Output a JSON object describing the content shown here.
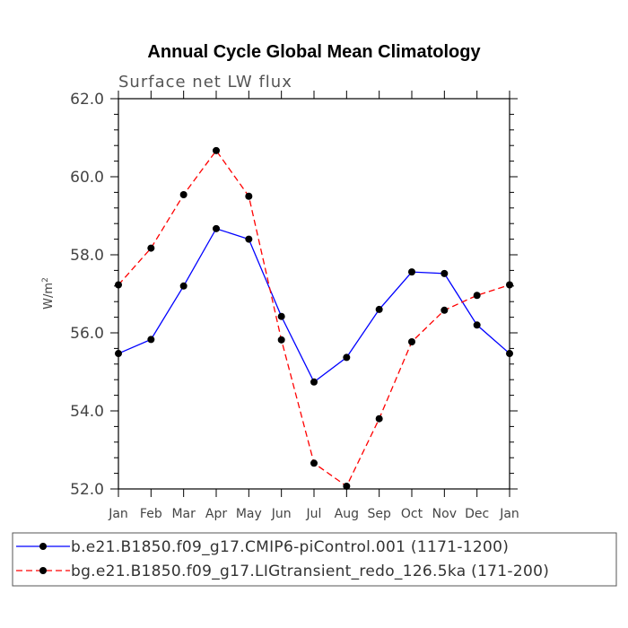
{
  "chart_data": {
    "type": "line",
    "title": "Annual Cycle Global Mean Climatology",
    "subtitle": "Surface net LW flux",
    "xlabel": "",
    "ylabel": "W/m",
    "ylabel_superscript": "2",
    "ylim": [
      52.0,
      62.0
    ],
    "yticks": [
      "52.0",
      "54.0",
      "56.0",
      "58.0",
      "60.0",
      "62.0"
    ],
    "categories": [
      "Jan",
      "Feb",
      "Mar",
      "Apr",
      "May",
      "Jun",
      "Jul",
      "Aug",
      "Sep",
      "Oct",
      "Nov",
      "Dec",
      "Jan"
    ],
    "series": [
      {
        "name": "b.e21.B1850.f09_g17.CMIP6-piControl.001 (1171-1200)",
        "color": "#0000ff",
        "style": "solid",
        "values": [
          55.47,
          55.83,
          57.2,
          58.67,
          58.4,
          56.42,
          54.74,
          55.37,
          56.6,
          57.56,
          57.52,
          56.2,
          55.47
        ]
      },
      {
        "name": "bg.e21.B1850.f09_g17.LIGtransient_redo_126.5ka (171-200)",
        "color": "#ff0000",
        "style": "dashed",
        "values": [
          57.23,
          58.17,
          59.54,
          60.67,
          59.5,
          55.82,
          52.66,
          52.07,
          53.8,
          55.77,
          56.58,
          56.96,
          57.23
        ]
      }
    ]
  }
}
